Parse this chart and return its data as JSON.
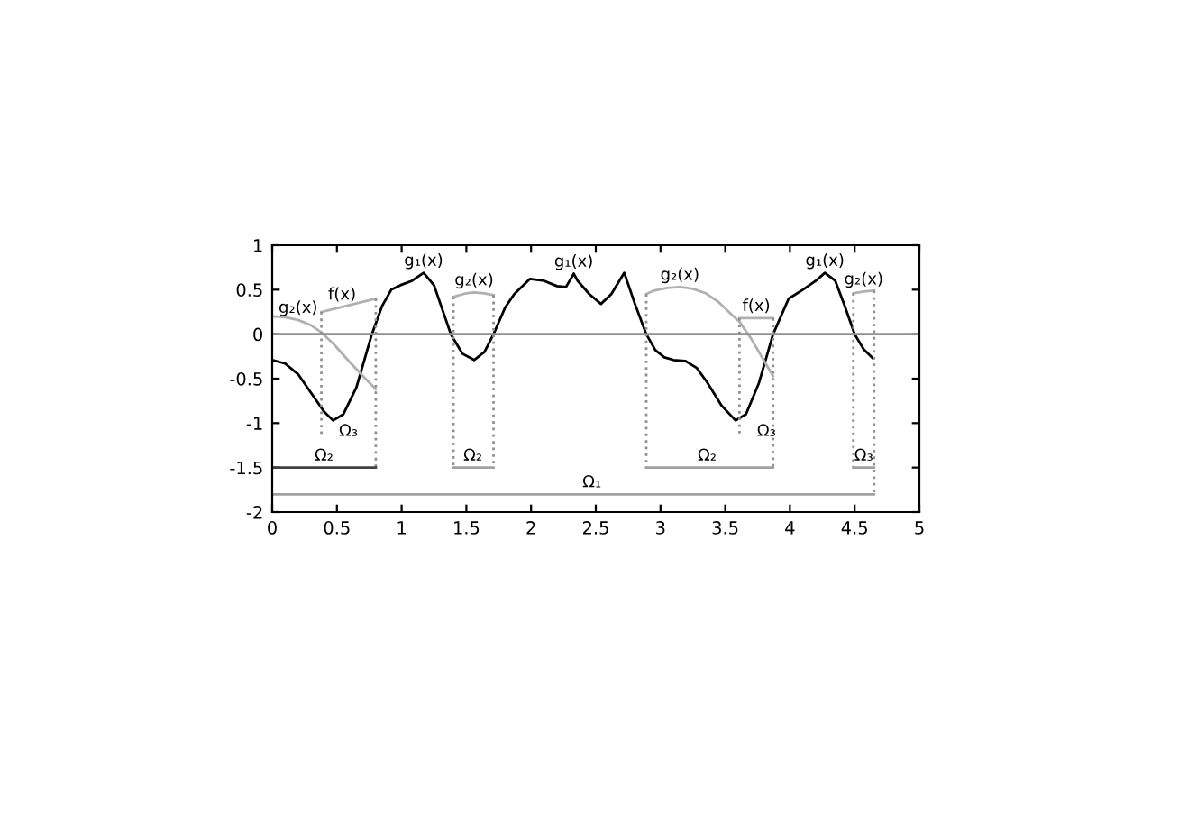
{
  "chart_data": {
    "type": "line",
    "xlim": [
      0,
      5
    ],
    "ylim": [
      -2,
      1
    ],
    "xticks": [
      0,
      0.5,
      1,
      1.5,
      2,
      2.5,
      3,
      3.5,
      4,
      4.5,
      5
    ],
    "yticks": [
      -2,
      -1.5,
      -1,
      -0.5,
      0,
      0.5,
      1
    ],
    "grid": false,
    "legend": false,
    "marker": "none",
    "ref_lines": [
      {
        "axis": "y",
        "value": 0,
        "color": "#909090"
      }
    ],
    "series": [
      {
        "color": "#000000",
        "line_style": "solid",
        "x": [
          0,
          0.1,
          0.2,
          0.3,
          0.4,
          0.47,
          0.55,
          0.65,
          0.77,
          0.85,
          0.92,
          0.99,
          1.08,
          1.17,
          1.25,
          1.38,
          1.47,
          1.56,
          1.64,
          1.71,
          1.8,
          1.87,
          1.99,
          2.1,
          2.2,
          2.27,
          2.33,
          2.36,
          2.45,
          2.54,
          2.62,
          2.72,
          2.8,
          2.89,
          2.96,
          3.03,
          3.1,
          3.19,
          3.28,
          3.36,
          3.47,
          3.58,
          3.66,
          3.76,
          3.87,
          3.99,
          4.1,
          4.2,
          4.27,
          4.35,
          4.42,
          4.5,
          4.57,
          4.64
        ],
        "values": [
          -0.29,
          -0.33,
          -0.45,
          -0.66,
          -0.87,
          -0.97,
          -0.9,
          -0.6,
          0,
          0.32,
          0.5,
          0.55,
          0.6,
          0.69,
          0.55,
          0,
          -0.22,
          -0.29,
          -0.2,
          0,
          0.3,
          0.45,
          0.62,
          0.6,
          0.54,
          0.53,
          0.68,
          0.6,
          0.45,
          0.34,
          0.45,
          0.69,
          0.35,
          0,
          -0.18,
          -0.26,
          -0.29,
          -0.3,
          -0.38,
          -0.54,
          -0.8,
          -0.97,
          -0.9,
          -0.55,
          0,
          0.4,
          0.5,
          0.6,
          0.69,
          0.6,
          0.33,
          0,
          -0.17,
          -0.27
        ]
      },
      {
        "color": "#b0b0b0",
        "line_style": "solid",
        "x": [
          0,
          0.1,
          0.2,
          0.3,
          0.38,
          0.48,
          0.59,
          0.7,
          0.8
        ],
        "values": [
          0.2,
          0.19,
          0.16,
          0.1,
          0.02,
          -0.12,
          -0.3,
          -0.47,
          -0.62
        ]
      },
      {
        "color": "#b0b0b0",
        "line_style": "solid",
        "x": [
          0.38,
          0.8
        ],
        "values": [
          0.25,
          0.4
        ]
      },
      {
        "color": "#b0b0b0",
        "line_style": "solid",
        "x": [
          1.4,
          1.5,
          1.56,
          1.64,
          1.71
        ],
        "values": [
          0.42,
          0.46,
          0.47,
          0.46,
          0.44
        ]
      },
      {
        "color": "#b0b0b0",
        "line_style": "solid",
        "x": [
          2.89,
          2.95,
          3.05,
          3.15,
          3.25,
          3.35,
          3.45,
          3.55,
          3.61,
          3.7,
          3.8,
          3.87
        ],
        "values": [
          0.45,
          0.49,
          0.52,
          0.53,
          0.51,
          0.46,
          0.36,
          0.22,
          0.14,
          -0.05,
          -0.3,
          -0.47
        ]
      },
      {
        "color": "#b0b0b0",
        "line_style": "solid",
        "x": [
          3.61,
          3.87
        ],
        "values": [
          0.18,
          0.18
        ]
      },
      {
        "color": "#b0b0b0",
        "line_style": "solid",
        "x": [
          4.49,
          4.57,
          4.65
        ],
        "values": [
          0.46,
          0.48,
          0.49
        ]
      },
      {
        "color": "#909090",
        "line_style": "dotted",
        "x": [
          0.38,
          0.38
        ],
        "values": [
          0.25,
          -1.15
        ]
      },
      {
        "color": "#909090",
        "line_style": "dotted",
        "x": [
          0.8,
          0.8
        ],
        "values": [
          0.4,
          -1.5
        ]
      },
      {
        "color": "#909090",
        "line_style": "dotted",
        "x": [
          1.4,
          1.4
        ],
        "values": [
          0.42,
          -1.5
        ]
      },
      {
        "color": "#909090",
        "line_style": "dotted",
        "x": [
          1.71,
          1.71
        ],
        "values": [
          0.44,
          -1.5
        ]
      },
      {
        "color": "#909090",
        "line_style": "dotted",
        "x": [
          2.89,
          2.89
        ],
        "values": [
          0.45,
          -1.5
        ]
      },
      {
        "color": "#909090",
        "line_style": "dotted",
        "x": [
          3.61,
          3.61
        ],
        "values": [
          0.18,
          -1.15
        ]
      },
      {
        "color": "#909090",
        "line_style": "dotted",
        "x": [
          3.87,
          3.87
        ],
        "values": [
          0.18,
          -1.5
        ]
      },
      {
        "color": "#909090",
        "line_style": "dotted",
        "x": [
          4.49,
          4.49
        ],
        "values": [
          0.46,
          -1.5
        ]
      },
      {
        "color": "#909090",
        "line_style": "dotted",
        "x": [
          4.65,
          4.65
        ],
        "values": [
          0.49,
          -1.8
        ]
      },
      {
        "color": "#404040",
        "line_style": "solid",
        "x": [
          0,
          0.8
        ],
        "values": [
          -1.5,
          -1.5
        ]
      },
      {
        "color": "#a0a0a0",
        "line_style": "solid",
        "x": [
          1.4,
          1.71
        ],
        "values": [
          -1.5,
          -1.5
        ]
      },
      {
        "color": "#a0a0a0",
        "line_style": "solid",
        "x": [
          2.89,
          3.87
        ],
        "values": [
          -1.5,
          -1.5
        ]
      },
      {
        "color": "#a0a0a0",
        "line_style": "solid",
        "x": [
          4.49,
          4.65
        ],
        "values": [
          -1.5,
          -1.5
        ]
      },
      {
        "color": "#a0a0a0",
        "line_style": "solid",
        "x": [
          0,
          4.65
        ],
        "values": [
          -1.8,
          -1.8
        ]
      }
    ],
    "annotations": [
      {
        "text": "g₂(x)",
        "x": 0.2,
        "y": 0.16
      },
      {
        "text": "f(x)",
        "x": 0.54,
        "y": 0.31
      },
      {
        "text": "g₁(x)",
        "x": 1.17,
        "y": 0.69
      },
      {
        "text": "g₂(x)",
        "x": 1.56,
        "y": 0.47
      },
      {
        "text": "g₁(x)",
        "x": 2.33,
        "y": 0.68
      },
      {
        "text": "g₂(x)",
        "x": 3.15,
        "y": 0.53
      },
      {
        "text": "f(x)",
        "x": 3.74,
        "y": 0.18
      },
      {
        "text": "g₁(x)",
        "x": 4.27,
        "y": 0.69
      },
      {
        "text": "g₂(x)",
        "x": 4.57,
        "y": 0.48
      },
      {
        "text": "Ω₃",
        "x": 0.38,
        "y": -1.15
      },
      {
        "text": "Ω₃",
        "x": 3.61,
        "y": -1.15
      },
      {
        "text": "Ω₂",
        "x": 0.4,
        "y": -1.5
      },
      {
        "text": "Ω₂",
        "x": 1.55,
        "y": -1.5
      },
      {
        "text": "Ω₂",
        "x": 3.36,
        "y": -1.5
      },
      {
        "text": "Ω₃",
        "x": 4.57,
        "y": -1.5
      },
      {
        "text": "Ω₁",
        "x": 2.47,
        "y": -1.8
      }
    ]
  }
}
